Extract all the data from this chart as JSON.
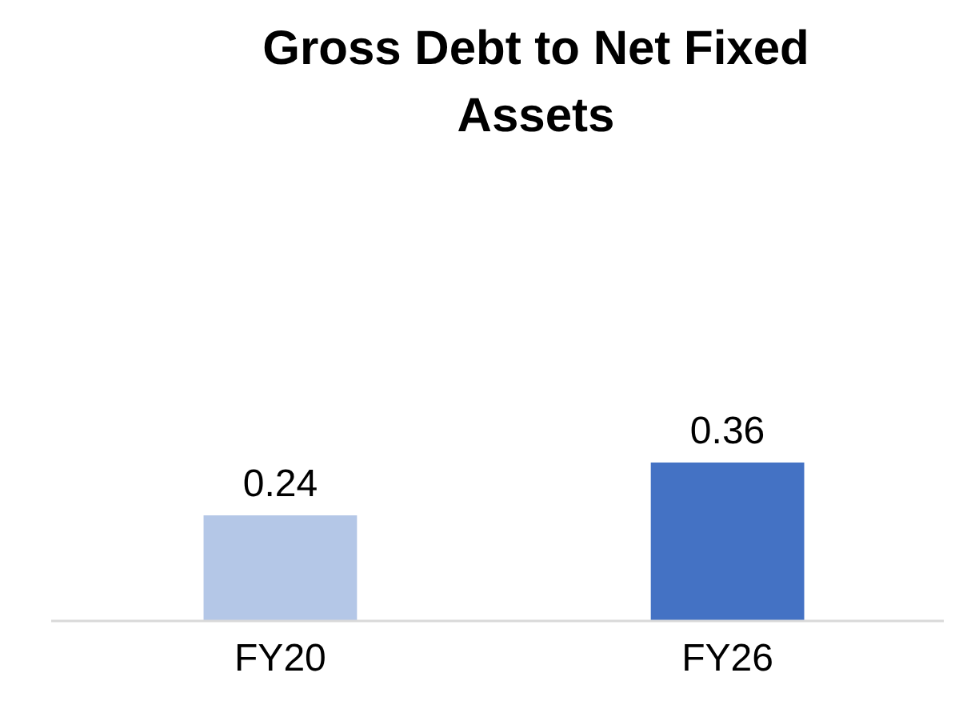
{
  "chart_data": {
    "type": "bar",
    "title": "Gross Debt to Net Fixed Assets",
    "categories": [
      "FY20",
      "FY26"
    ],
    "values": [
      0.24,
      0.36
    ],
    "colors": [
      "#b4c7e7",
      "#4472c4"
    ],
    "data_labels": true
  }
}
